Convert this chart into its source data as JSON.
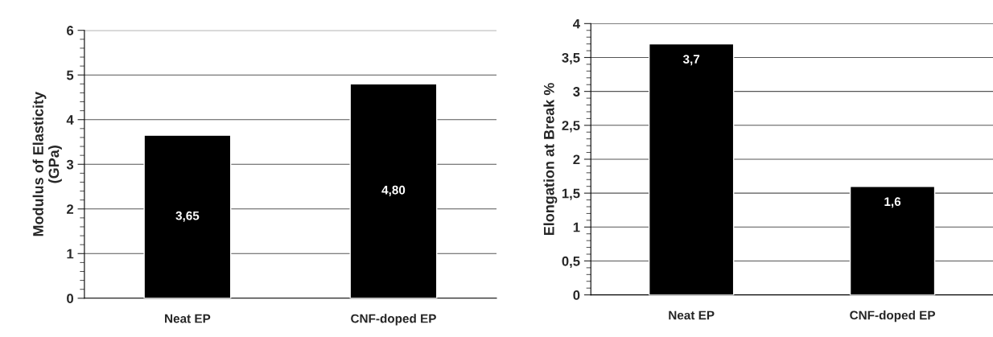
{
  "chart_data": [
    {
      "type": "bar",
      "categories": [
        "Neat EP",
        "CNF-doped EP"
      ],
      "values": [
        3.65,
        4.8
      ],
      "color": "#000000",
      "value_labels": [
        "3,65",
        "4,80"
      ],
      "ylabel": "Modulus of Elasticity\n(GPa)",
      "ylim": [
        0,
        6
      ],
      "yticks": [
        0,
        1,
        2,
        3,
        4,
        5,
        6
      ],
      "grid": "y"
    },
    {
      "type": "bar",
      "categories": [
        "Neat EP",
        "CNF-doped EP"
      ],
      "values": [
        3.7,
        1.6
      ],
      "color": "#000000",
      "value_labels": [
        "3,7",
        "1,6"
      ],
      "ylabel": "Elongation at Break %",
      "ylim": [
        0,
        4
      ],
      "yticks": [
        0,
        {
          "value": 0.5,
          "label": "0,5"
        },
        1,
        {
          "value": 1.5,
          "label": "1,5"
        },
        2,
        {
          "value": 2.5,
          "label": "2,5"
        },
        3,
        {
          "value": 3.5,
          "label": "3,5"
        },
        4
      ],
      "grid": "y"
    }
  ]
}
